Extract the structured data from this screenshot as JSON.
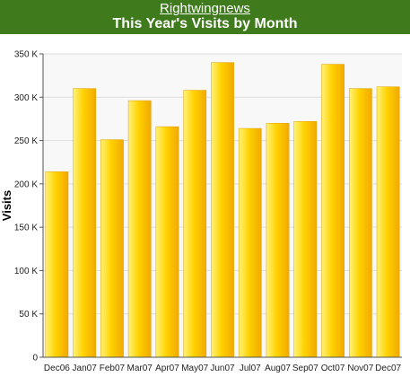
{
  "header": {
    "site_name": "Rightwingnews",
    "title": "This Year's Visits by Month"
  },
  "colors": {
    "header_bg": "#3f7a1c",
    "bar_light": "#fff27a",
    "bar_mid": "#ffd200",
    "bar_dark": "#f2a900",
    "plot_bg": "#f8f8f8",
    "grid": "#dddddd"
  },
  "chart_data": {
    "type": "bar",
    "title": "This Year's Visits by Month",
    "xlabel": "",
    "ylabel": "Visits",
    "ylim": [
      0,
      350000
    ],
    "yticks": [
      0,
      50000,
      100000,
      150000,
      200000,
      250000,
      300000,
      350000
    ],
    "ytick_labels": [
      "0",
      "50 K",
      "100 K",
      "150 K",
      "200 K",
      "250 K",
      "300 K",
      "350 K"
    ],
    "categories": [
      "Dec06",
      "Jan07",
      "Feb07",
      "Mar07",
      "Apr07",
      "May07",
      "Jun07",
      "Jul07",
      "Aug07",
      "Sep07",
      "Oct07",
      "Nov07",
      "Dec07"
    ],
    "values": [
      214000,
      310000,
      251000,
      296000,
      266000,
      308000,
      340000,
      264000,
      270000,
      272000,
      338000,
      310000,
      312000
    ],
    "grid": true,
    "legend": "none"
  }
}
